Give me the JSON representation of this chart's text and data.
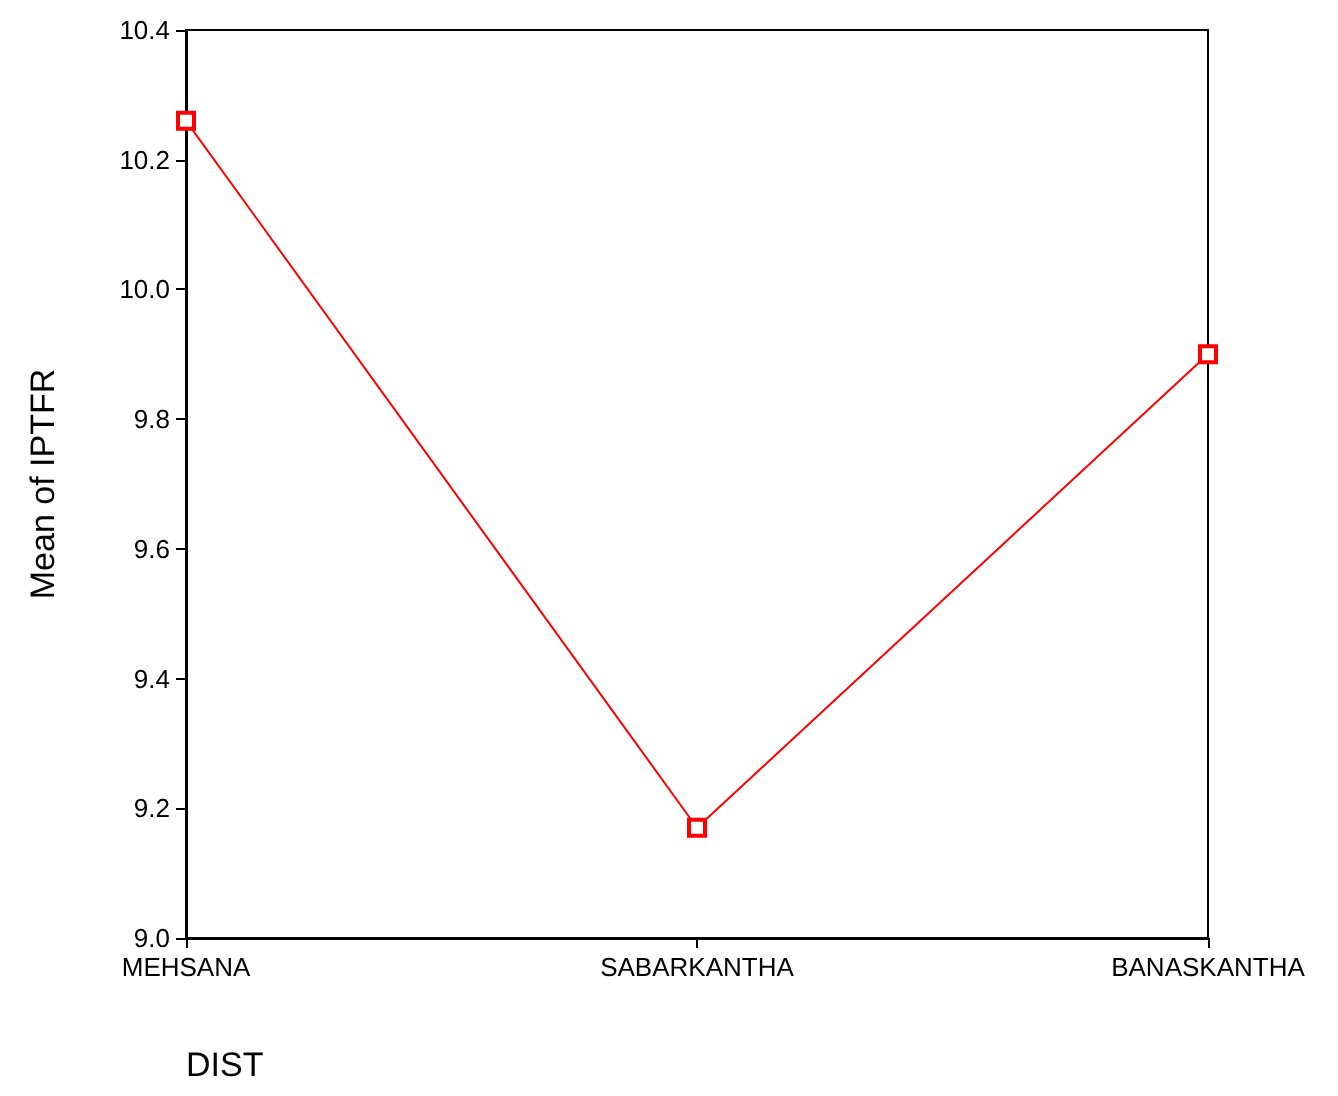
{
  "chart_data": {
    "type": "line",
    "xlabel": "DIST",
    "ylabel": "Mean of IPTFR",
    "categories": [
      "MEHSANA",
      "SABARKANTHA",
      "BANASKANTHA"
    ],
    "series": [
      {
        "color": "#ff0000",
        "values": [
          10.26,
          9.17,
          9.9
        ]
      }
    ],
    "ylim": [
      9.0,
      10.4
    ],
    "yticks": [
      {
        "value": 9.0,
        "label": "9.0"
      },
      {
        "value": 9.2,
        "label": "9.2"
      },
      {
        "value": 9.4,
        "label": "9.4"
      },
      {
        "value": 9.6,
        "label": "9.6"
      },
      {
        "value": 9.8,
        "label": "9.8"
      },
      {
        "value": 10.0,
        "label": "10.0"
      },
      {
        "value": 10.2,
        "label": "10.2"
      },
      {
        "value": 10.4,
        "label": "10.4"
      }
    ],
    "grid": false,
    "marker": "square",
    "line_style": "solid"
  }
}
